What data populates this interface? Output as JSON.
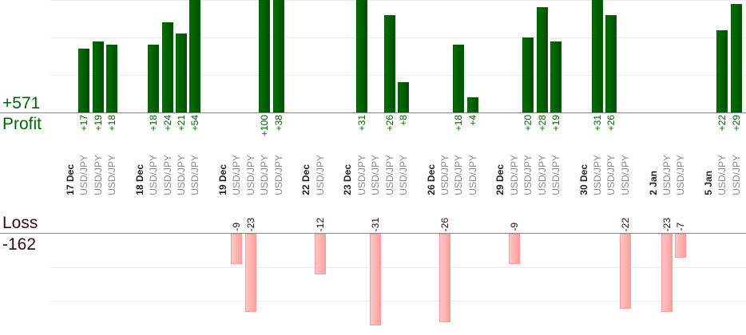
{
  "summary": {
    "profit_total": "+571",
    "profit_label": "Profit",
    "loss_label": "Loss",
    "loss_total": "-162"
  },
  "colors": {
    "profit": "#006600",
    "loss_bar": "#ffaaaa"
  },
  "chart_data": {
    "type": "bar",
    "profit_axis": {
      "ylim": [
        0,
        30
      ],
      "grid_step": 10
    },
    "loss_axis": {
      "ylim": [
        0,
        27
      ],
      "grid_step": 10
    },
    "days": [
      {
        "date": "17 Dec",
        "trades": [
          {
            "pair": "USD/JPY",
            "value": 17,
            "label": "+17"
          },
          {
            "pair": "USD/JPY",
            "value": 19,
            "label": "+19"
          },
          {
            "pair": "USD/JPY",
            "value": 18,
            "label": "+18"
          }
        ]
      },
      {
        "date": "18 Dec",
        "trades": [
          {
            "pair": "USD/JPY",
            "value": 18,
            "label": "+18"
          },
          {
            "pair": "USD/JPY",
            "value": 24,
            "label": "+24"
          },
          {
            "pair": "USD/JPY",
            "value": 21,
            "label": "+21"
          },
          {
            "pair": "USD/JPY",
            "value": 54,
            "label": "+54"
          }
        ]
      },
      {
        "date": "19 Dec",
        "trades": [
          {
            "pair": "USD/JPY",
            "value": -9,
            "label": "-9"
          },
          {
            "pair": "USD/JPY",
            "value": -23,
            "label": "-23"
          },
          {
            "pair": "USD/JPY",
            "value": 100,
            "label": "+100"
          },
          {
            "pair": "USD/JPY",
            "value": 38,
            "label": "+38"
          }
        ]
      },
      {
        "date": "22 Dec",
        "trades": [
          {
            "pair": "USD/JPY",
            "value": -12,
            "label": "-12"
          }
        ]
      },
      {
        "date": "23 Dec",
        "trades": [
          {
            "pair": "USD/JPY",
            "value": 31,
            "label": "+31"
          },
          {
            "pair": "USD/JPY",
            "value": -31,
            "label": "-31"
          },
          {
            "pair": "USD/JPY",
            "value": 26,
            "label": "+26"
          },
          {
            "pair": "USD/JPY",
            "value": 8,
            "label": "+8"
          }
        ]
      },
      {
        "date": "26 Dec",
        "trades": [
          {
            "pair": "USD/JPY",
            "value": -26,
            "label": "-26"
          },
          {
            "pair": "USD/JPY",
            "value": 18,
            "label": "+18"
          },
          {
            "pair": "USD/JPY",
            "value": 4,
            "label": "+4"
          }
        ]
      },
      {
        "date": "29 Dec",
        "trades": [
          {
            "pair": "USD/JPY",
            "value": -9,
            "label": "-9"
          },
          {
            "pair": "USD/JPY",
            "value": 20,
            "label": "+20"
          },
          {
            "pair": "USD/JPY",
            "value": 28,
            "label": "+28"
          },
          {
            "pair": "USD/JPY",
            "value": 19,
            "label": "+19"
          }
        ]
      },
      {
        "date": "30 Dec",
        "trades": [
          {
            "pair": "USD/JPY",
            "value": 31,
            "label": "+31"
          },
          {
            "pair": "USD/JPY",
            "value": 26,
            "label": "+26"
          },
          {
            "pair": "USD/JPY",
            "value": -22,
            "label": "-22"
          }
        ]
      },
      {
        "date": "2 Jan",
        "trades": [
          {
            "pair": "USD/JPY",
            "value": -23,
            "label": "-23"
          },
          {
            "pair": "USD/JPY",
            "value": -7,
            "label": "-7"
          }
        ]
      },
      {
        "date": "5 Jan",
        "trades": [
          {
            "pair": "USD/JPY",
            "value": 22,
            "label": "+22"
          },
          {
            "pair": "USD/JPY",
            "value": 29,
            "label": "+29"
          }
        ]
      }
    ]
  }
}
